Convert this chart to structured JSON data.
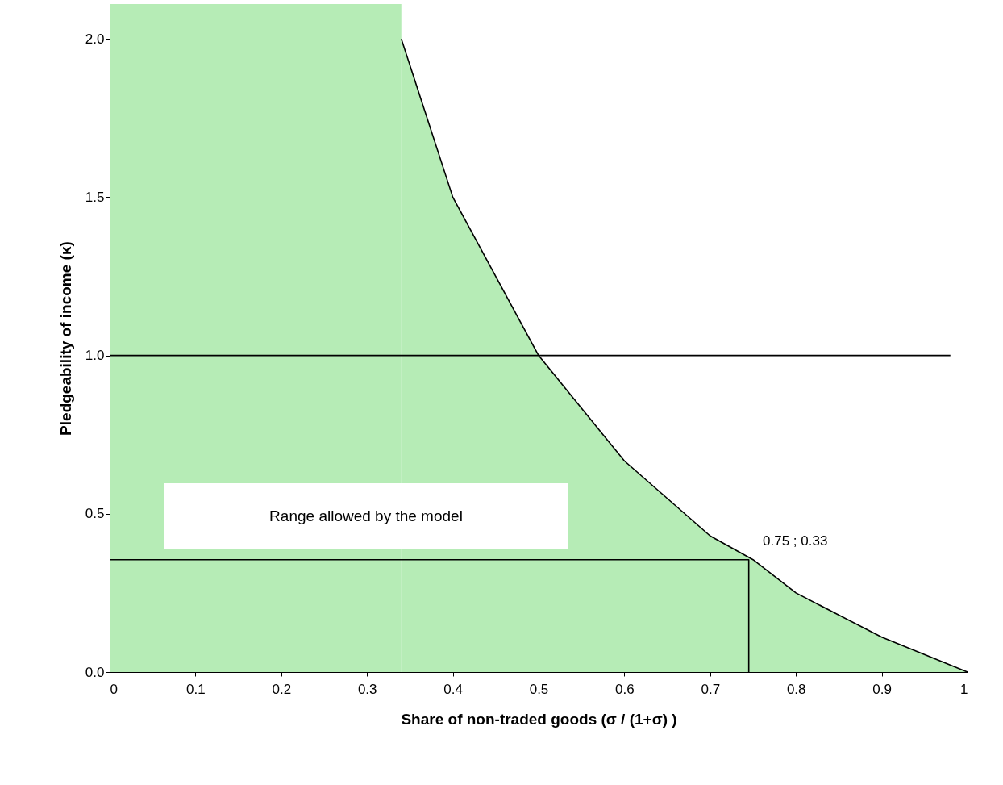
{
  "chart_data": {
    "type": "line",
    "xlabel": "Share of non-traded goods (σ / (1+σ) )",
    "ylabel": "Pledgeability of income (κ)",
    "xlim": [
      0,
      1
    ],
    "xticks": [
      0,
      0.1,
      0.2,
      0.3,
      0.4,
      0.5,
      0.6,
      0.7,
      0.8,
      0.9,
      1
    ],
    "ylim": [
      0,
      2.11
    ],
    "yticks": [
      {
        "value": 0,
        "label": "0.0"
      },
      {
        "value": 0.5,
        "label": "0.5"
      },
      {
        "value": 1,
        "label": "1.0"
      },
      {
        "value": 1.5,
        "label": "1.5"
      },
      {
        "value": 2,
        "label": "2.0"
      }
    ],
    "grid": false,
    "series": [
      {
        "type": "area",
        "color": "#b6ecb6",
        "x": [
          0.34,
          0.4,
          0.5,
          0.6,
          0.7,
          0.75,
          0.8,
          0.9,
          1
        ],
        "values": [
          2.0,
          1.5,
          1.0,
          0.667,
          0.43,
          0.355,
          0.25,
          0.11,
          0
        ]
      },
      {
        "color": "#000000",
        "x": [
          0,
          0.98
        ],
        "values": [
          1.0,
          1.0
        ]
      },
      {
        "color": "#000000",
        "x": [
          0,
          0.745,
          0.745
        ],
        "values": [
          0.355,
          0.355,
          0
        ]
      }
    ],
    "bands": [
      {
        "axis": "x",
        "from": 0,
        "to": 0.34,
        "color": "#b6ecb6"
      }
    ],
    "annotations": [
      "Range allowed by the model",
      "0.75 ; 0.33"
    ]
  }
}
